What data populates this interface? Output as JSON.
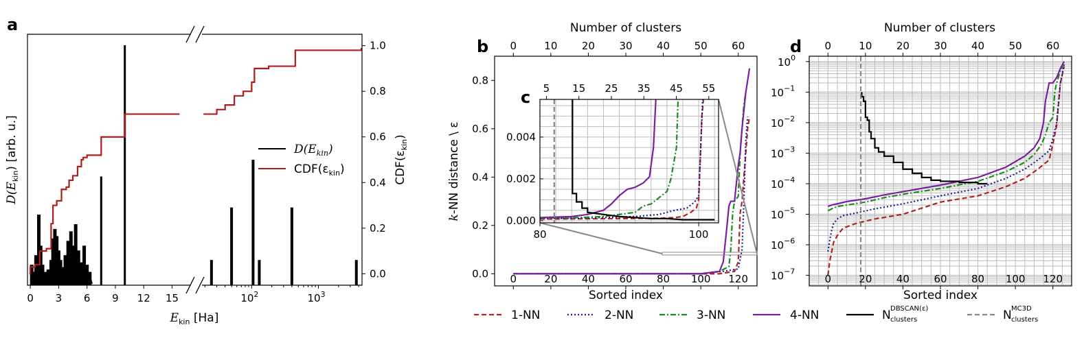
{
  "panels": {
    "a": "a",
    "b": "b",
    "c": "c",
    "d": "d"
  },
  "colors": {
    "n1": "#b22222",
    "n2": "#1a1a9e",
    "n3": "#1e8a1e",
    "n4": "#7b1fa2",
    "dbscan": "#000000",
    "mc3d": "#888888",
    "cdf": "#b01c1c",
    "spectrum": "#000000",
    "grid": "#bbbbbb"
  },
  "legend_bottom": {
    "n1": "1-NN",
    "n2": "2-NN",
    "n3": "3-NN",
    "n4": "4-NN",
    "dbscan_main": "N",
    "dbscan_sup": "DBSCAN(ε)",
    "dbscan_sub": "clusters",
    "mc3d_main": "N",
    "mc3d_sup": "MC3D",
    "mc3d_sub": "clusters"
  },
  "chart_data": [
    {
      "panel": "a",
      "type": "bar",
      "title": "",
      "xlabel_main": "E",
      "xlabel_sub": "kin",
      "xlabel_unit": " [Ha]",
      "ylabel_main": "D(E",
      "ylabel_sub": "kin",
      "ylabel_unit": ") [arb. u.]",
      "y2label_main": "CDF(ε",
      "y2label_sub": "kin",
      "y2label_end": ")",
      "legend": {
        "spectrum_main": "D(E",
        "spectrum_sub": "kin",
        "spectrum_end": ")",
        "cdf_main": "CDF(ε",
        "cdf_sub": "kin",
        "cdf_end": ")"
      },
      "left_axis": {
        "range": [
          -0.3,
          17
        ],
        "ticks": [
          0,
          3,
          6,
          9,
          12,
          15
        ],
        "tick_labels": [
          "0",
          "3",
          "6",
          "9",
          "12",
          "15"
        ]
      },
      "right_axis_log": {
        "range": [
          18,
          4500
        ],
        "major_ticks": [
          100,
          1000
        ],
        "major_labels": [
          "10",
          "10"
        ],
        "major_exps": [
          "2",
          "3"
        ]
      },
      "y2_axis": {
        "range": [
          -0.05,
          1.05
        ],
        "ticks": [
          0.0,
          0.2,
          0.4,
          0.6,
          0.8,
          1.0
        ],
        "tick_labels": [
          "0.0",
          "0.2",
          "0.4",
          "0.6",
          "0.8",
          "1.0"
        ]
      },
      "spectrum_peaks_linear": [
        [
          0.15,
          0.08
        ],
        [
          0.35,
          0.05
        ],
        [
          0.6,
          0.12
        ],
        [
          0.9,
          0.29
        ],
        [
          1.1,
          0.16
        ],
        [
          1.3,
          0.08
        ],
        [
          1.6,
          0.05
        ],
        [
          1.9,
          0.06
        ],
        [
          2.2,
          0.1
        ],
        [
          2.4,
          0.19
        ],
        [
          2.6,
          0.23
        ],
        [
          2.8,
          0.2
        ],
        [
          3.0,
          0.14
        ],
        [
          3.2,
          0.1
        ],
        [
          3.4,
          0.07
        ],
        [
          3.7,
          0.12
        ],
        [
          4.0,
          0.18
        ],
        [
          4.3,
          0.22
        ],
        [
          4.5,
          0.16
        ],
        [
          4.8,
          0.25
        ],
        [
          5.1,
          0.14
        ],
        [
          5.4,
          0.09
        ],
        [
          5.7,
          0.16
        ],
        [
          6.0,
          0.08
        ],
        [
          6.3,
          0.05
        ],
        [
          7.5,
          0.45
        ],
        [
          10.0,
          1.0
        ]
      ],
      "spectrum_peaks_log": [
        [
          25,
          0.1
        ],
        [
          50,
          0.32
        ],
        [
          105,
          0.52
        ],
        [
          130,
          0.1
        ],
        [
          400,
          0.32
        ],
        [
          3700,
          0.1
        ]
      ],
      "cdf_steps_linear": [
        [
          -0.1,
          0.0
        ],
        [
          0.0,
          0.03
        ],
        [
          0.5,
          0.04
        ],
        [
          1.0,
          0.1
        ],
        [
          1.7,
          0.11
        ],
        [
          2.2,
          0.22
        ],
        [
          2.4,
          0.3
        ],
        [
          2.8,
          0.32
        ],
        [
          3.3,
          0.37
        ],
        [
          3.8,
          0.38
        ],
        [
          4.1,
          0.41
        ],
        [
          4.5,
          0.43
        ],
        [
          5.0,
          0.47
        ],
        [
          5.4,
          0.5
        ],
        [
          5.6,
          0.51
        ],
        [
          6.0,
          0.52
        ],
        [
          7.5,
          0.6
        ],
        [
          10.0,
          0.7
        ],
        [
          15.8,
          0.7
        ]
      ],
      "cdf_steps_log": [
        [
          19,
          0.7
        ],
        [
          22,
          0.7
        ],
        [
          30,
          0.72
        ],
        [
          40,
          0.74
        ],
        [
          55,
          0.78
        ],
        [
          75,
          0.8
        ],
        [
          100,
          0.84
        ],
        [
          110,
          0.9
        ],
        [
          180,
          0.91
        ],
        [
          450,
          0.98
        ],
        [
          4400,
          0.99
        ]
      ]
    },
    {
      "panel": "b",
      "type": "line",
      "xlabel": "Sorted index",
      "ylabel_main": "k",
      "ylabel_rest": "-NN distance \\ ε",
      "top_xlabel": "Number of clusters",
      "xlim": [
        -10,
        130
      ],
      "ylim": [
        -0.05,
        0.9
      ],
      "x_ticks": [
        0,
        20,
        40,
        60,
        80,
        100,
        120
      ],
      "x_tick_labels": [
        "0",
        "20",
        "40",
        "60",
        "80",
        "100",
        "120"
      ],
      "y_ticks": [
        0.0,
        0.2,
        0.4,
        0.6,
        0.8
      ],
      "y_tick_labels": [
        "0.0",
        "0.2",
        "0.4",
        "0.6",
        "0.8"
      ],
      "top_ticks": [
        0,
        10,
        20,
        30,
        40,
        50,
        60
      ],
      "top_tick_labels": [
        "0",
        "10",
        "20",
        "30",
        "40",
        "50",
        "60"
      ],
      "top_range": [
        -5,
        65
      ],
      "series": [
        {
          "name": "1-NN",
          "x": [
            0,
            100,
            110,
            118,
            120,
            121,
            122,
            123,
            124,
            125,
            126
          ],
          "y": [
            0,
            0,
            0.0,
            0.01,
            0.05,
            0.25,
            0.3,
            0.4,
            0.5,
            0.6,
            0.65
          ]
        },
        {
          "name": "2-NN",
          "x": [
            0,
            100,
            112,
            120,
            122,
            123,
            124,
            125
          ],
          "y": [
            0,
            0,
            0.01,
            0.02,
            0.1,
            0.3,
            0.55,
            0.65
          ]
        },
        {
          "name": "3-NN",
          "x": [
            0,
            100,
            110,
            115,
            116,
            117,
            118,
            120,
            121,
            122,
            123,
            124
          ],
          "y": [
            0,
            0,
            0.01,
            0.03,
            0.1,
            0.25,
            0.3,
            0.32,
            0.5,
            0.6,
            0.7,
            0.75
          ]
        },
        {
          "name": "4-NN",
          "x": [
            0,
            100,
            110,
            112,
            114,
            115,
            116,
            118,
            120,
            121,
            122,
            124,
            126
          ],
          "y": [
            0,
            0,
            0.01,
            0.05,
            0.2,
            0.28,
            0.3,
            0.3,
            0.45,
            0.5,
            0.6,
            0.75,
            0.85
          ]
        }
      ]
    },
    {
      "panel": "c",
      "type": "line",
      "xlim": [
        80,
        102.5
      ],
      "ylim": [
        -0.0001,
        0.0058
      ],
      "x_ticks": [
        80,
        100
      ],
      "x_tick_labels": [
        "80",
        "100"
      ],
      "y_ticks": [
        0.0,
        0.002,
        0.004
      ],
      "y_tick_labels": [
        "0.000",
        "0.002",
        "0.004"
      ],
      "top_ticks": [
        5,
        15,
        25,
        35,
        45,
        55
      ],
      "top_tick_labels": [
        "5",
        "15",
        "25",
        "35",
        "45",
        "55"
      ],
      "top_range": [
        3,
        58
      ],
      "series": [
        {
          "name": "1-NN",
          "x": [
            80,
            85,
            90,
            95,
            97,
            98,
            99,
            99.7,
            100,
            100.2,
            100.4,
            100.6
          ],
          "y": [
            8e-05,
            9e-05,
            0.0001,
            0.00012,
            0.00015,
            0.0002,
            0.0004,
            0.0006,
            0.001,
            0.003,
            0.005,
            0.0058
          ]
        },
        {
          "name": "2-NN",
          "x": [
            80,
            85,
            88,
            92,
            95,
            97,
            98.5,
            99.5,
            100,
            100.2,
            100.5
          ],
          "y": [
            0.0001,
            0.00012,
            0.00015,
            0.0002,
            0.0003,
            0.0005,
            0.0006,
            0.0009,
            0.0012,
            0.003,
            0.0058
          ]
        },
        {
          "name": "3-NN",
          "x": [
            80,
            85,
            88,
            91,
            92,
            93,
            94,
            95,
            96,
            96.5,
            97.2,
            97.4
          ],
          "y": [
            0.00012,
            0.00015,
            0.0002,
            0.00035,
            0.0004,
            0.0007,
            0.0008,
            0.0011,
            0.0014,
            0.002,
            0.0035,
            0.0058
          ]
        },
        {
          "name": "4-NN",
          "x": [
            80,
            84,
            86,
            88,
            89,
            90,
            91,
            92,
            93,
            93.8,
            94.3,
            94.6
          ],
          "y": [
            0.00015,
            0.0002,
            0.0003,
            0.0005,
            0.0008,
            0.0012,
            0.0015,
            0.0016,
            0.0018,
            0.0021,
            0.0035,
            0.0058
          ]
        },
        {
          "name": "DBSCAN",
          "x": [
            84.1,
            84.1,
            84.6,
            84.6,
            85.3,
            85.3,
            86,
            86,
            87,
            88,
            89,
            90,
            92,
            94,
            96,
            98,
            100,
            102
          ],
          "y": [
            0.0058,
            0.0013,
            0.0013,
            0.0009,
            0.0009,
            0.0006,
            0.0006,
            0.0004,
            0.00035,
            0.0003,
            0.00025,
            0.0002,
            0.00015,
            0.0001,
            0.0001,
            5e-05,
            5e-05,
            5e-05
          ]
        },
        {
          "name": "MC3D",
          "x": [
            81.8,
            81.8
          ],
          "y": [
            0.0058,
            -0.0001
          ]
        }
      ]
    },
    {
      "panel": "d",
      "type": "line",
      "xlabel": "Sorted index",
      "top_xlabel": "Number of clusters",
      "xlim": [
        -10,
        130
      ],
      "ylim_log": [
        4.5e-08,
        1.5
      ],
      "x_ticks": [
        0,
        20,
        40,
        60,
        80,
        100,
        120
      ],
      "x_tick_labels": [
        "0",
        "20",
        "40",
        "60",
        "80",
        "100",
        "120"
      ],
      "y_ticks": [
        1e-07,
        1e-06,
        1e-05,
        0.0001,
        0.001,
        0.01,
        0.1,
        1
      ],
      "y_tick_base": [
        "10",
        "10",
        "10",
        "10",
        "10",
        "10",
        "10",
        "10"
      ],
      "y_tick_exps": [
        "−7",
        "−6",
        "−5",
        "−4",
        "−3",
        "−2",
        "−1",
        "0"
      ],
      "top_ticks": [
        0,
        10,
        20,
        30,
        40,
        50,
        60
      ],
      "top_tick_labels": [
        "0",
        "10",
        "20",
        "30",
        "40",
        "50",
        "60"
      ],
      "top_range": [
        -5,
        65
      ],
      "series": [
        {
          "name": "1-NN",
          "x": [
            0,
            1,
            2,
            3,
            5,
            8,
            15,
            25,
            40,
            60,
            80,
            95,
            105,
            112,
            118,
            120,
            122,
            124,
            126
          ],
          "y": [
            1e-07,
            3e-07,
            6e-07,
            1.2e-06,
            2e-06,
            3.5e-06,
            5e-06,
            7e-06,
            1e-05,
            2.5e-05,
            4e-05,
            8e-05,
            0.00015,
            0.0003,
            0.0006,
            0.002,
            0.008,
            0.2,
            0.7
          ]
        },
        {
          "name": "2-NN",
          "x": [
            0,
            1,
            2,
            3,
            5,
            8,
            15,
            25,
            40,
            60,
            80,
            95,
            105,
            112,
            118,
            120,
            122,
            124,
            126
          ],
          "y": [
            6e-07,
            1.5e-06,
            3e-06,
            5e-06,
            7e-06,
            9e-06,
            1.1e-05,
            1.5e-05,
            2.2e-05,
            4e-05,
            7e-05,
            0.00015,
            0.0003,
            0.0006,
            0.0012,
            0.003,
            0.01,
            0.2,
            0.8
          ]
        },
        {
          "name": "3-NN",
          "x": [
            0,
            2,
            5,
            10,
            20,
            30,
            40,
            60,
            80,
            95,
            105,
            110,
            114,
            116,
            118,
            120,
            121,
            122,
            124,
            126
          ],
          "y": [
            1.3e-05,
            1.5e-05,
            1.8e-05,
            2e-05,
            2.5e-05,
            3.5e-05,
            4.5e-05,
            7e-05,
            0.00012,
            0.00025,
            0.0005,
            0.0009,
            0.002,
            0.004,
            0.01,
            0.015,
            0.1,
            0.2,
            0.5,
            0.9
          ]
        },
        {
          "name": "4-NN",
          "x": [
            0,
            2,
            5,
            10,
            20,
            30,
            40,
            60,
            80,
            95,
            105,
            110,
            113,
            115,
            116,
            118,
            120,
            122,
            124,
            126
          ],
          "y": [
            1.8e-05,
            2e-05,
            2.2e-05,
            2.6e-05,
            3.2e-05,
            4.3e-05,
            5.5e-05,
            9e-05,
            0.00016,
            0.00035,
            0.0008,
            0.0015,
            0.003,
            0.01,
            0.05,
            0.2,
            0.2,
            0.3,
            0.6,
            1.0
          ]
        },
        {
          "name": "DBSCAN",
          "x": [
            18,
            18,
            19,
            19,
            20,
            20,
            21,
            21,
            22,
            22,
            23,
            23,
            25,
            25,
            27,
            27,
            30,
            30,
            35,
            35,
            40,
            40,
            45,
            45,
            50,
            50,
            55,
            55,
            60,
            60,
            70,
            70,
            80,
            80,
            85
          ],
          "y": [
            0.1,
            0.07,
            0.07,
            0.05,
            0.05,
            0.015,
            0.015,
            0.012,
            0.012,
            0.005,
            0.005,
            0.003,
            0.003,
            0.0015,
            0.0015,
            0.0011,
            0.0011,
            0.0008,
            0.0008,
            0.0005,
            0.0005,
            0.0003,
            0.0003,
            0.00022,
            0.00022,
            0.00016,
            0.00016,
            0.00013,
            0.00013,
            0.00012,
            0.00012,
            0.00011,
            0.00011,
            0.0001,
            0.0001
          ]
        },
        {
          "name": "MC3D",
          "x": [
            17.5,
            17.5
          ],
          "y": [
            1.5,
            4.5e-08
          ]
        }
      ]
    }
  ]
}
